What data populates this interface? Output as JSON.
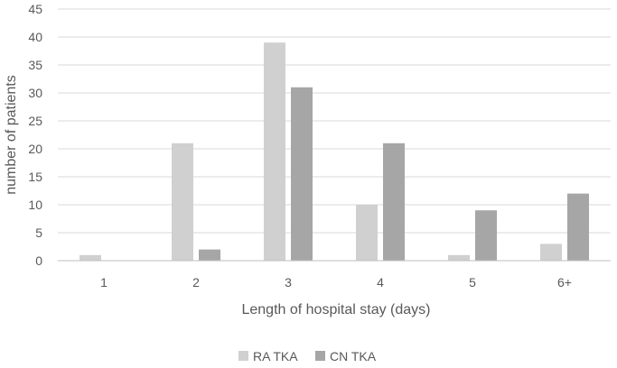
{
  "chart_data": {
    "type": "bar",
    "title": "",
    "xlabel": "Length of hospital stay (days)",
    "ylabel": "number of patients",
    "categories": [
      "1",
      "2",
      "3",
      "4",
      "5",
      "6+"
    ],
    "series": [
      {
        "name": "RA TKA",
        "values": [
          1,
          21,
          39,
          10,
          1,
          3
        ],
        "color": "#d0d0d0"
      },
      {
        "name": "CN TKA",
        "values": [
          0,
          2,
          31,
          21,
          9,
          12
        ],
        "color": "#a6a6a6"
      }
    ],
    "ylim": [
      0,
      45
    ],
    "yticks": [
      0,
      5,
      10,
      15,
      20,
      25,
      30,
      35,
      40,
      45
    ],
    "grid": true,
    "legend_position": "bottom"
  }
}
